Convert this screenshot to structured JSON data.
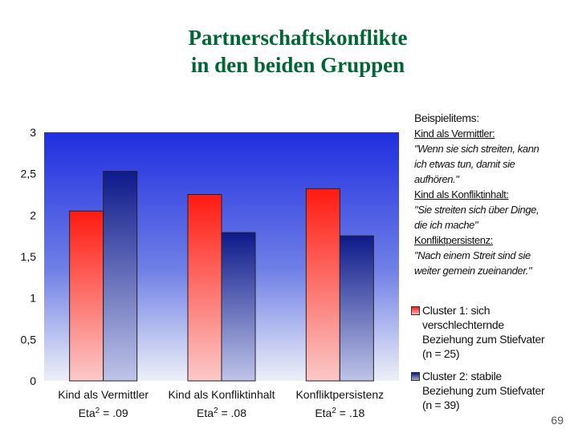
{
  "title": {
    "line1": "Partnerschaftskonflikte",
    "line2": "in den beiden Gruppen"
  },
  "chart_data": {
    "type": "bar",
    "categories": [
      "Kind als Vermittler",
      "Kind als Konfliktinhalt",
      "Konfliktpersistenz"
    ],
    "sublabels": [
      {
        "prefix": "Eta",
        "sup": "2",
        "suffix": " = .09"
      },
      {
        "prefix": "Eta",
        "sup": "2",
        "suffix": " = .08"
      },
      {
        "prefix": "Eta",
        "sup": "2",
        "suffix": " = .18"
      }
    ],
    "series": [
      {
        "name": "Cluster 1: sich verschlechternde Beziehung zum Stiefvater (n = 25)",
        "values": [
          2.05,
          2.25,
          2.32
        ],
        "color": "#e8201c"
      },
      {
        "name": "Cluster 2: stabile Beziehung zum Stiefvater (n = 39)",
        "values": [
          2.53,
          1.79,
          1.75
        ],
        "color": "#1c2a8c"
      }
    ],
    "ylim": [
      0,
      3
    ],
    "yticks": [
      "0",
      "0,5",
      "1",
      "1,5",
      "2",
      "2,5",
      "3"
    ],
    "ytick_values": [
      0,
      0.5,
      1,
      1.5,
      2,
      2.5,
      3
    ],
    "grid": false,
    "legend_position": "right"
  },
  "items": {
    "heading": "Beispielitems:",
    "entries": [
      {
        "label": "Kind als Vermittler:",
        "lines": [
          "\"Wenn sie sich streiten, kann",
          "ich etwas tun, damit sie",
          "aufhören.\""
        ]
      },
      {
        "label": "Kind als Konfliktinhalt:",
        "lines": [
          "\"Sie streiten sich über Dinge,",
          "die ich mache\""
        ]
      },
      {
        "label": "Konfliktpersistenz:",
        "lines": [
          "\"Nach einem Streit sind sie",
          "weiter gemein zueinander.\""
        ]
      }
    ]
  },
  "legend": {
    "cluster1": [
      "Cluster 1: sich",
      "verschlechternde",
      "Beziehung zum Stiefvater",
      "(n = 25)"
    ],
    "cluster2": [
      "Cluster 2: stabile",
      "Beziehung zum Stiefvater",
      "(n = 39)"
    ]
  },
  "page_number": "69"
}
